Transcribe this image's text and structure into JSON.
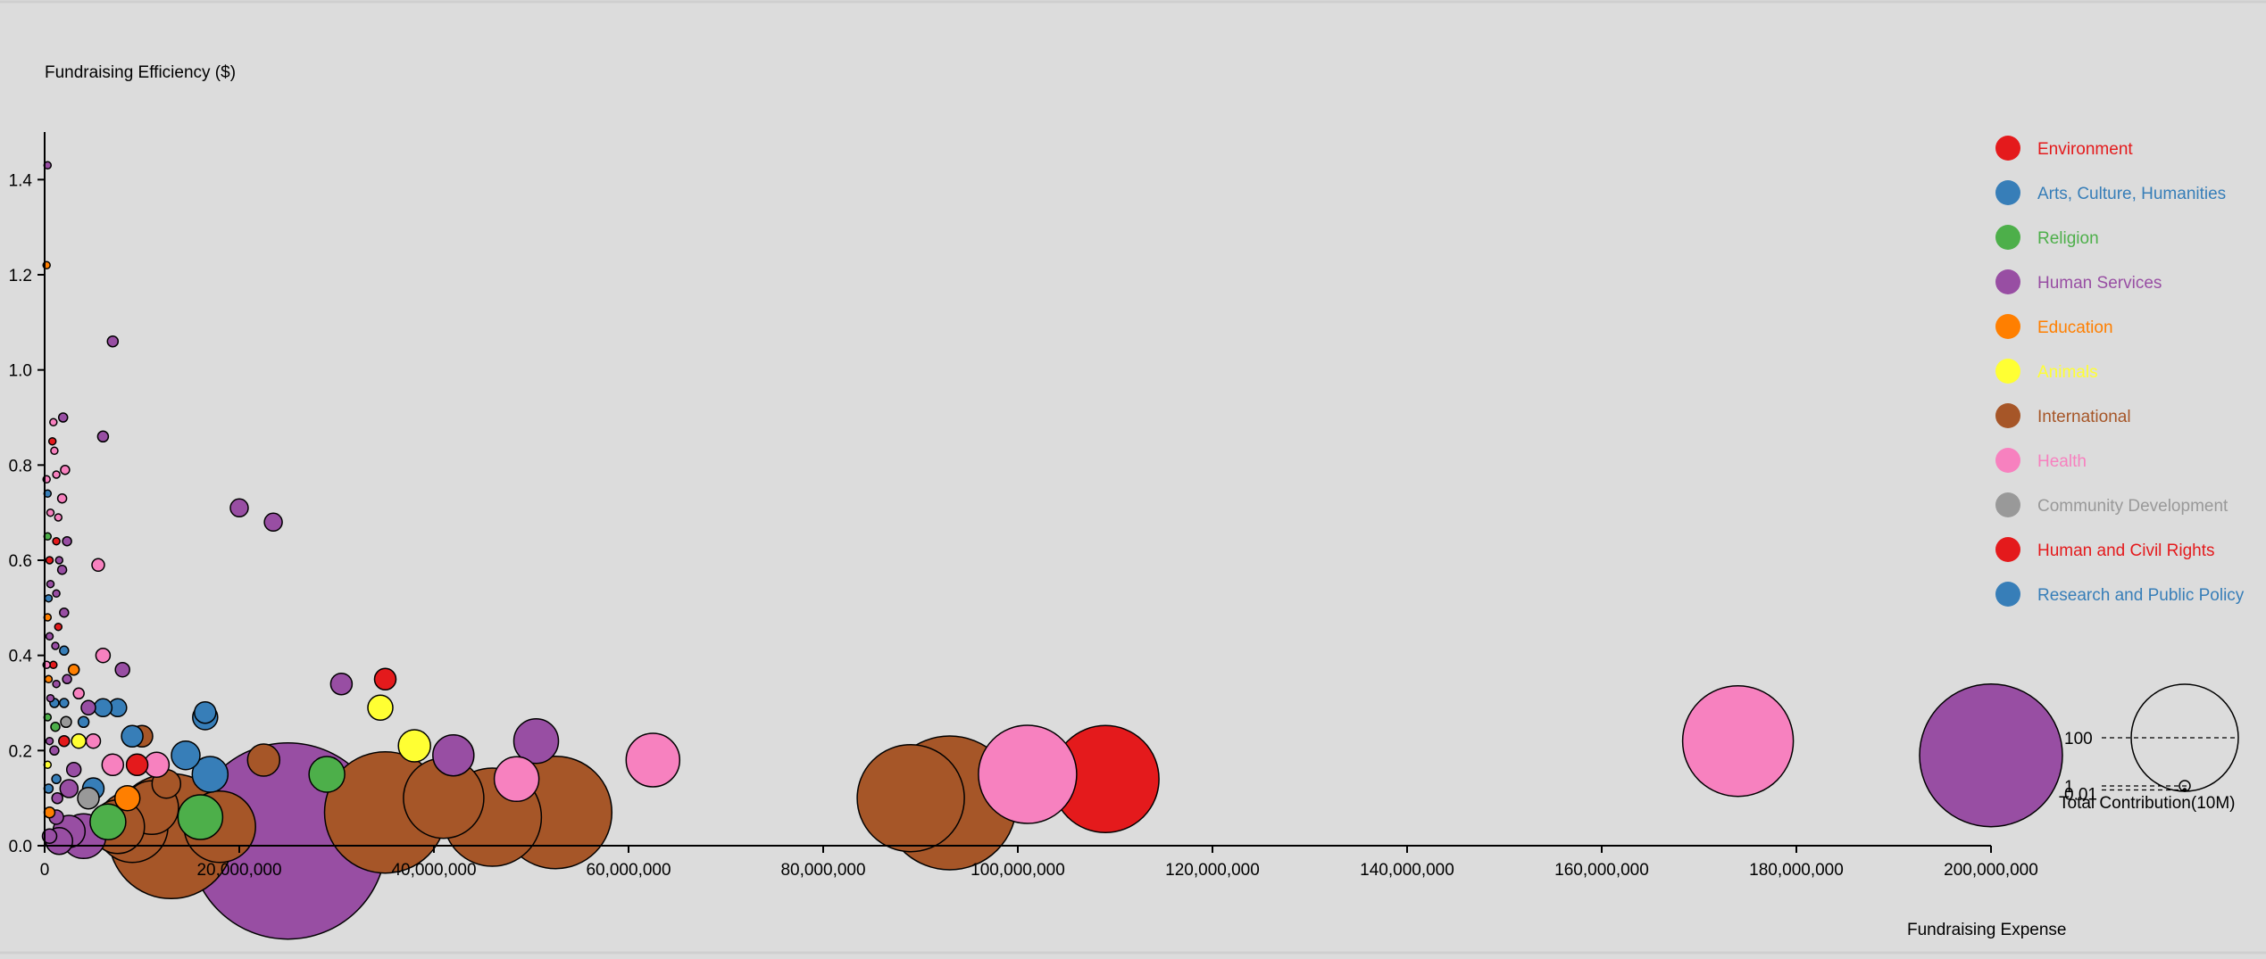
{
  "chart_data": {
    "type": "scatter",
    "title": "",
    "ylabel": "Fundraising Efficiency ($)",
    "xlabel": "Fundraising Expense",
    "xlim": [
      0,
      200000000
    ],
    "ylim": [
      0,
      1.5
    ],
    "x_ticks": [
      0,
      20000000,
      40000000,
      60000000,
      80000000,
      100000000,
      120000000,
      140000000,
      160000000,
      180000000,
      200000000
    ],
    "x_tick_labels": [
      "0",
      "20,000,000",
      "40,000,000",
      "60,000,000",
      "80,000,000",
      "100,000,000",
      "120,000,000",
      "140,000,000",
      "160,000,000",
      "180,000,000",
      "200,000,000"
    ],
    "y_ticks": [
      0,
      0.2,
      0.4,
      0.6,
      0.8,
      1.0,
      1.2,
      1.4
    ],
    "y_tick_labels": [
      "0.0",
      "0.2",
      "0.4",
      "0.6",
      "0.8",
      "1.0",
      "1.2",
      "1.4"
    ],
    "grid": false,
    "legend_position": "right",
    "size_legend": {
      "title": "Total Contribution(10M)",
      "items": [
        {
          "label": "100",
          "value": 100
        },
        {
          "label": "1",
          "value": 1
        },
        {
          "label": "0.01",
          "value": 0.01
        }
      ]
    },
    "categories": [
      {
        "name": "Environment",
        "color": "#e41a1c"
      },
      {
        "name": "Arts, Culture, Humanities",
        "color": "#377eb8"
      },
      {
        "name": "Religion",
        "color": "#4daf4a"
      },
      {
        "name": "Human Services",
        "color": "#984ea3"
      },
      {
        "name": "Education",
        "color": "#ff7f00"
      },
      {
        "name": "Animals",
        "color": "#ffff33"
      },
      {
        "name": "International",
        "color": "#a65628"
      },
      {
        "name": "Health",
        "color": "#f781bf"
      },
      {
        "name": "Community Development",
        "color": "#999999"
      },
      {
        "name": "Human and Civil Rights",
        "color": "#e41a1c"
      },
      {
        "name": "Research and Public Policy",
        "color": "#377eb8"
      }
    ],
    "points": [
      {
        "x": 200000000,
        "y": 0.19,
        "size": 80,
        "category": "Human Services"
      },
      {
        "x": 174000000,
        "y": 0.22,
        "size": 62,
        "category": "Health"
      },
      {
        "x": 109000000,
        "y": 0.14,
        "size": 60,
        "category": "Environment"
      },
      {
        "x": 101000000,
        "y": 0.15,
        "size": 55,
        "category": "Health"
      },
      {
        "x": 93000000,
        "y": 0.09,
        "size": 75,
        "category": "International"
      },
      {
        "x": 89000000,
        "y": 0.1,
        "size": 60,
        "category": "International"
      },
      {
        "x": 62500000,
        "y": 0.18,
        "size": 30,
        "category": "Health"
      },
      {
        "x": 52500000,
        "y": 0.07,
        "size": 63,
        "category": "International"
      },
      {
        "x": 50500000,
        "y": 0.22,
        "size": 25,
        "category": "Human Services"
      },
      {
        "x": 46000000,
        "y": 0.06,
        "size": 55,
        "category": "International"
      },
      {
        "x": 48500000,
        "y": 0.14,
        "size": 25,
        "category": "Health"
      },
      {
        "x": 41000000,
        "y": 0.1,
        "size": 45,
        "category": "International"
      },
      {
        "x": 38000000,
        "y": 0.21,
        "size": 18,
        "category": "Animals"
      },
      {
        "x": 42000000,
        "y": 0.19,
        "size": 23,
        "category": "Human Services"
      },
      {
        "x": 35000000,
        "y": 0.07,
        "size": 68,
        "category": "International"
      },
      {
        "x": 35000000,
        "y": 0.35,
        "size": 12,
        "category": "Environment"
      },
      {
        "x": 34500000,
        "y": 0.29,
        "size": 14,
        "category": "Animals"
      },
      {
        "x": 30500000,
        "y": 0.34,
        "size": 12,
        "category": "Human Services"
      },
      {
        "x": 29000000,
        "y": 0.15,
        "size": 20,
        "category": "Religion"
      },
      {
        "x": 25000000,
        "y": 0.01,
        "size": 110,
        "category": "Human Services"
      },
      {
        "x": 22500000,
        "y": 0.18,
        "size": 18,
        "category": "International"
      },
      {
        "x": 18000000,
        "y": 0.04,
        "size": 40,
        "category": "International"
      },
      {
        "x": 16000000,
        "y": 0.06,
        "size": 25,
        "category": "Religion"
      },
      {
        "x": 13000000,
        "y": 0.02,
        "size": 70,
        "category": "International"
      },
      {
        "x": 16500000,
        "y": 0.27,
        "size": 14,
        "category": "Arts, Culture, Humanities"
      },
      {
        "x": 16500000,
        "y": 0.28,
        "size": 12,
        "category": "Arts, Culture, Humanities"
      },
      {
        "x": 14500000,
        "y": 0.19,
        "size": 16,
        "category": "Arts, Culture, Humanities"
      },
      {
        "x": 17000000,
        "y": 0.15,
        "size": 20,
        "category": "Arts, Culture, Humanities"
      },
      {
        "x": 12500000,
        "y": 0.13,
        "size": 16,
        "category": "International"
      },
      {
        "x": 11000000,
        "y": 0.08,
        "size": 30,
        "category": "International"
      },
      {
        "x": 11500000,
        "y": 0.17,
        "size": 14,
        "category": "Health"
      },
      {
        "x": 10000000,
        "y": 0.23,
        "size": 12,
        "category": "International"
      },
      {
        "x": 9000000,
        "y": 0.04,
        "size": 40,
        "category": "International"
      },
      {
        "x": 8500000,
        "y": 0.1,
        "size": 14,
        "category": "Education"
      },
      {
        "x": 9500000,
        "y": 0.17,
        "size": 12,
        "category": "Environment"
      },
      {
        "x": 9000000,
        "y": 0.23,
        "size": 12,
        "category": "Arts, Culture, Humanities"
      },
      {
        "x": 7500000,
        "y": 0.04,
        "size": 30,
        "category": "International"
      },
      {
        "x": 6500000,
        "y": 0.05,
        "size": 20,
        "category": "Religion"
      },
      {
        "x": 7000000,
        "y": 0.17,
        "size": 12,
        "category": "Health"
      },
      {
        "x": 7500000,
        "y": 0.29,
        "size": 10,
        "category": "Arts, Culture, Humanities"
      },
      {
        "x": 8000000,
        "y": 0.37,
        "size": 8,
        "category": "Human Services"
      },
      {
        "x": 6000000,
        "y": 0.4,
        "size": 8,
        "category": "Health"
      },
      {
        "x": 5500000,
        "y": 0.59,
        "size": 7,
        "category": "Health"
      },
      {
        "x": 6000000,
        "y": 0.86,
        "size": 6,
        "category": "Human Services"
      },
      {
        "x": 7000000,
        "y": 1.06,
        "size": 6,
        "category": "Human Services"
      },
      {
        "x": 20000000,
        "y": 0.71,
        "size": 10,
        "category": "Human Services"
      },
      {
        "x": 23500000,
        "y": 0.68,
        "size": 10,
        "category": "Human Services"
      },
      {
        "x": 5000000,
        "y": 0.12,
        "size": 12,
        "category": "Arts, Culture, Humanities"
      },
      {
        "x": 5000000,
        "y": 0.22,
        "size": 8,
        "category": "Health"
      },
      {
        "x": 4500000,
        "y": 0.29,
        "size": 8,
        "category": "Human Services"
      },
      {
        "x": 4000000,
        "y": 0.02,
        "size": 25,
        "category": "Human Services"
      },
      {
        "x": 4500000,
        "y": 0.1,
        "size": 12,
        "category": "Community Development"
      },
      {
        "x": 3500000,
        "y": 0.22,
        "size": 8,
        "category": "Animals"
      },
      {
        "x": 3000000,
        "y": 0.16,
        "size": 8,
        "category": "Human Services"
      },
      {
        "x": 2500000,
        "y": 0.03,
        "size": 18,
        "category": "Human Services"
      },
      {
        "x": 2500000,
        "y": 0.12,
        "size": 10,
        "category": "Human Services"
      },
      {
        "x": 2000000,
        "y": 0.22,
        "size": 6,
        "category": "Environment"
      },
      {
        "x": 2200000,
        "y": 0.26,
        "size": 6,
        "category": "Community Development"
      },
      {
        "x": 2000000,
        "y": 0.3,
        "size": 5,
        "category": "Arts, Culture, Humanities"
      },
      {
        "x": 2300000,
        "y": 0.35,
        "size": 5,
        "category": "Human Services"
      },
      {
        "x": 2000000,
        "y": 0.41,
        "size": 5,
        "category": "Arts, Culture, Humanities"
      },
      {
        "x": 2000000,
        "y": 0.49,
        "size": 5,
        "category": "Human Services"
      },
      {
        "x": 1800000,
        "y": 0.58,
        "size": 5,
        "category": "Human Services"
      },
      {
        "x": 2300000,
        "y": 0.64,
        "size": 5,
        "category": "Human Services"
      },
      {
        "x": 1800000,
        "y": 0.73,
        "size": 5,
        "category": "Health"
      },
      {
        "x": 2100000,
        "y": 0.79,
        "size": 5,
        "category": "Health"
      },
      {
        "x": 1900000,
        "y": 0.9,
        "size": 5,
        "category": "Human Services"
      },
      {
        "x": 1500000,
        "y": 0.01,
        "size": 15,
        "category": "Human Services"
      },
      {
        "x": 1200000,
        "y": 0.06,
        "size": 8,
        "category": "Human Services"
      },
      {
        "x": 1300000,
        "y": 0.1,
        "size": 6,
        "category": "Human Services"
      },
      {
        "x": 1200000,
        "y": 0.14,
        "size": 5,
        "category": "Arts, Culture, Humanities"
      },
      {
        "x": 1000000,
        "y": 0.2,
        "size": 5,
        "category": "Human Services"
      },
      {
        "x": 1100000,
        "y": 0.25,
        "size": 5,
        "category": "Religion"
      },
      {
        "x": 1000000,
        "y": 0.3,
        "size": 5,
        "category": "Arts, Culture, Humanities"
      },
      {
        "x": 1200000,
        "y": 0.34,
        "size": 4,
        "category": "Human Services"
      },
      {
        "x": 900000,
        "y": 0.38,
        "size": 4,
        "category": "Environment"
      },
      {
        "x": 1100000,
        "y": 0.42,
        "size": 4,
        "category": "Human Services"
      },
      {
        "x": 1400000,
        "y": 0.46,
        "size": 4,
        "category": "Environment"
      },
      {
        "x": 1200000,
        "y": 0.53,
        "size": 4,
        "category": "Human Services"
      },
      {
        "x": 1500000,
        "y": 0.6,
        "size": 4,
        "category": "Human Services"
      },
      {
        "x": 1200000,
        "y": 0.64,
        "size": 4,
        "category": "Environment"
      },
      {
        "x": 1400000,
        "y": 0.69,
        "size": 4,
        "category": "Health"
      },
      {
        "x": 1200000,
        "y": 0.78,
        "size": 4,
        "category": "Health"
      },
      {
        "x": 1000000,
        "y": 0.83,
        "size": 4,
        "category": "Health"
      },
      {
        "x": 800000,
        "y": 0.85,
        "size": 4,
        "category": "Environment"
      },
      {
        "x": 900000,
        "y": 0.89,
        "size": 4,
        "category": "Health"
      },
      {
        "x": 500000,
        "y": 0.02,
        "size": 8,
        "category": "Human Services"
      },
      {
        "x": 500000,
        "y": 0.07,
        "size": 6,
        "category": "Education"
      },
      {
        "x": 400000,
        "y": 0.12,
        "size": 5,
        "category": "Arts, Culture, Humanities"
      },
      {
        "x": 300000,
        "y": 0.17,
        "size": 4,
        "category": "Animals"
      },
      {
        "x": 500000,
        "y": 0.22,
        "size": 4,
        "category": "Human Services"
      },
      {
        "x": 300000,
        "y": 0.27,
        "size": 4,
        "category": "Religion"
      },
      {
        "x": 600000,
        "y": 0.31,
        "size": 4,
        "category": "Human Services"
      },
      {
        "x": 400000,
        "y": 0.35,
        "size": 4,
        "category": "Education"
      },
      {
        "x": 200000,
        "y": 0.38,
        "size": 4,
        "category": "Health"
      },
      {
        "x": 500000,
        "y": 0.44,
        "size": 4,
        "category": "Human Services"
      },
      {
        "x": 300000,
        "y": 0.48,
        "size": 4,
        "category": "Education"
      },
      {
        "x": 400000,
        "y": 0.52,
        "size": 4,
        "category": "Arts, Culture, Humanities"
      },
      {
        "x": 600000,
        "y": 0.55,
        "size": 4,
        "category": "Human Services"
      },
      {
        "x": 500000,
        "y": 0.6,
        "size": 4,
        "category": "Environment"
      },
      {
        "x": 300000,
        "y": 0.65,
        "size": 4,
        "category": "Religion"
      },
      {
        "x": 600000,
        "y": 0.7,
        "size": 4,
        "category": "Health"
      },
      {
        "x": 300000,
        "y": 0.74,
        "size": 4,
        "category": "Arts, Culture, Humanities"
      },
      {
        "x": 200000,
        "y": 0.77,
        "size": 4,
        "category": "Health"
      },
      {
        "x": 200000,
        "y": 1.22,
        "size": 4,
        "category": "Education"
      },
      {
        "x": 300000,
        "y": 1.43,
        "size": 4,
        "category": "Human Services"
      },
      {
        "x": 3000000,
        "y": 0.37,
        "size": 6,
        "category": "Education"
      },
      {
        "x": 3500000,
        "y": 0.32,
        "size": 6,
        "category": "Health"
      },
      {
        "x": 6000000,
        "y": 0.29,
        "size": 10,
        "category": "Arts, Culture, Humanities"
      },
      {
        "x": 4000000,
        "y": 0.26,
        "size": 6,
        "category": "Arts, Culture, Humanities"
      }
    ]
  }
}
